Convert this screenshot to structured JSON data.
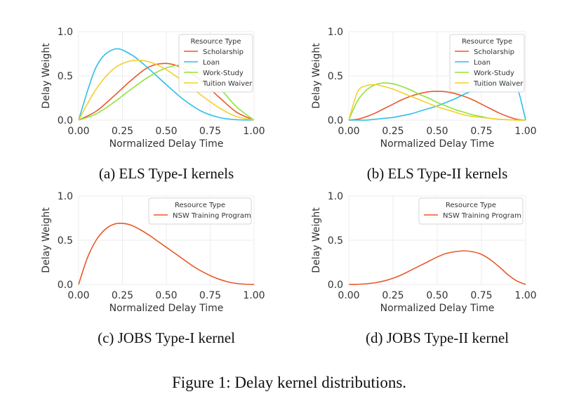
{
  "colors": {
    "scholarship": "#e8592a",
    "loan": "#2fbfe8",
    "work_study": "#8fe33a",
    "tuition_waiver": "#f3d02b",
    "nsw": "#e8592a"
  },
  "figure_caption": "Figure 1: Delay kernel distributions.",
  "chart_data": [
    {
      "type": "line",
      "caption": "(a) ELS Type-I kernels",
      "xlabel": "Normalized Delay Time",
      "ylabel": "Delay Weight",
      "xlim": [
        0,
        1
      ],
      "ylim": [
        0,
        1
      ],
      "xticks": [
        "0.00",
        "0.25",
        "0.50",
        "0.75",
        "1.00"
      ],
      "yticks": [
        "0.0",
        "0.5",
        "1.0"
      ],
      "grid": true,
      "legend": {
        "title": "Resource Type",
        "placement": "top-right"
      },
      "x": [
        0,
        0.1,
        0.2,
        0.3,
        0.4,
        0.5,
        0.6,
        0.7,
        0.8,
        0.9,
        1.0
      ],
      "series": [
        {
          "name": "Scholarship",
          "color_key": "scholarship",
          "values": [
            0,
            0.1,
            0.27,
            0.45,
            0.6,
            0.64,
            0.58,
            0.44,
            0.26,
            0.09,
            0
          ]
        },
        {
          "name": "Loan",
          "color_key": "loan",
          "values": [
            0,
            0.6,
            0.8,
            0.74,
            0.58,
            0.4,
            0.23,
            0.1,
            0.03,
            0.005,
            0
          ]
        },
        {
          "name": "Work-Study",
          "color_key": "work_study",
          "values": [
            0,
            0.07,
            0.2,
            0.35,
            0.49,
            0.59,
            0.62,
            0.54,
            0.37,
            0.15,
            0
          ]
        },
        {
          "name": "Tuition Waiver",
          "color_key": "tuition_waiver",
          "values": [
            0,
            0.35,
            0.58,
            0.67,
            0.66,
            0.57,
            0.43,
            0.28,
            0.14,
            0.04,
            0
          ]
        }
      ]
    },
    {
      "type": "line",
      "caption": "(b) ELS Type-II kernels",
      "xlabel": "Normalized Delay Time",
      "ylabel": "Delay Weight",
      "xlim": [
        0,
        1
      ],
      "ylim": [
        0,
        1
      ],
      "xticks": [
        "0.00",
        "0.25",
        "0.50",
        "0.75",
        "1.00"
      ],
      "yticks": [
        "0.0",
        "0.5",
        "1.0"
      ],
      "grid": true,
      "legend": {
        "title": "Resource Type",
        "placement": "top-right"
      },
      "x": [
        0,
        0.05,
        0.1,
        0.15,
        0.2,
        0.25,
        0.3,
        0.35,
        0.4,
        0.45,
        0.5,
        0.55,
        0.6,
        0.65,
        0.7,
        0.75,
        0.8,
        0.85,
        0.9,
        0.95,
        1.0
      ],
      "series": [
        {
          "name": "Scholarship",
          "color_key": "scholarship",
          "values": [
            0,
            0.01,
            0.04,
            0.08,
            0.13,
            0.18,
            0.23,
            0.27,
            0.3,
            0.32,
            0.325,
            0.32,
            0.3,
            0.27,
            0.23,
            0.18,
            0.13,
            0.08,
            0.04,
            0.01,
            0
          ]
        },
        {
          "name": "Loan",
          "color_key": "loan",
          "values": [
            0,
            0.0,
            0.0,
            0.01,
            0.02,
            0.03,
            0.05,
            0.07,
            0.1,
            0.13,
            0.16,
            0.2,
            0.24,
            0.29,
            0.33,
            0.37,
            0.41,
            0.44,
            0.44,
            0.38,
            0
          ]
        },
        {
          "name": "Work-Study",
          "color_key": "work_study",
          "values": [
            0,
            0.22,
            0.34,
            0.4,
            0.42,
            0.41,
            0.38,
            0.34,
            0.29,
            0.25,
            0.2,
            0.16,
            0.12,
            0.09,
            0.06,
            0.04,
            0.02,
            0.01,
            0.005,
            0.0,
            0
          ]
        },
        {
          "name": "Tuition Waiver",
          "color_key": "tuition_waiver",
          "values": [
            0,
            0.32,
            0.39,
            0.4,
            0.38,
            0.35,
            0.31,
            0.27,
            0.23,
            0.19,
            0.15,
            0.12,
            0.09,
            0.06,
            0.04,
            0.03,
            0.02,
            0.01,
            0.005,
            0.0,
            0
          ]
        }
      ]
    },
    {
      "type": "line",
      "caption": "(c) JOBS Type-I kernel",
      "xlabel": "Normalized Delay Time",
      "ylabel": "Delay Weight",
      "xlim": [
        0,
        1
      ],
      "ylim": [
        0,
        1
      ],
      "xticks": [
        "0.00",
        "0.25",
        "0.50",
        "0.75",
        "1.00"
      ],
      "yticks": [
        "0.0",
        "0.5",
        "1.0"
      ],
      "grid": true,
      "legend": {
        "title": "Resource Type",
        "placement": "top-right"
      },
      "x": [
        0,
        0.05,
        0.1,
        0.15,
        0.2,
        0.25,
        0.3,
        0.35,
        0.4,
        0.45,
        0.5,
        0.55,
        0.6,
        0.65,
        0.7,
        0.75,
        0.8,
        0.85,
        0.9,
        0.95,
        1.0
      ],
      "series": [
        {
          "name": "NSW Training Program",
          "color_key": "nsw",
          "values": [
            0,
            0.3,
            0.5,
            0.62,
            0.68,
            0.69,
            0.67,
            0.62,
            0.56,
            0.49,
            0.42,
            0.35,
            0.28,
            0.21,
            0.15,
            0.1,
            0.06,
            0.03,
            0.012,
            0.003,
            0
          ]
        }
      ]
    },
    {
      "type": "line",
      "caption": "(d) JOBS Type-II kernel",
      "xlabel": "Normalized Delay Time",
      "ylabel": "Delay Weight",
      "xlim": [
        0,
        1
      ],
      "ylim": [
        0,
        1
      ],
      "xticks": [
        "0.00",
        "0.25",
        "0.50",
        "0.75",
        "1.00"
      ],
      "yticks": [
        "0.0",
        "0.5",
        "1.0"
      ],
      "grid": true,
      "legend": {
        "title": "Resource Type",
        "placement": "top-right"
      },
      "x": [
        0,
        0.05,
        0.1,
        0.15,
        0.2,
        0.25,
        0.3,
        0.35,
        0.4,
        0.45,
        0.5,
        0.55,
        0.6,
        0.65,
        0.7,
        0.75,
        0.8,
        0.85,
        0.9,
        0.95,
        1.0
      ],
      "series": [
        {
          "name": "NSW Training Program",
          "color_key": "nsw",
          "values": [
            0,
            0.002,
            0.008,
            0.02,
            0.04,
            0.07,
            0.11,
            0.16,
            0.21,
            0.26,
            0.31,
            0.35,
            0.37,
            0.38,
            0.37,
            0.34,
            0.28,
            0.2,
            0.11,
            0.04,
            0
          ]
        }
      ]
    }
  ]
}
